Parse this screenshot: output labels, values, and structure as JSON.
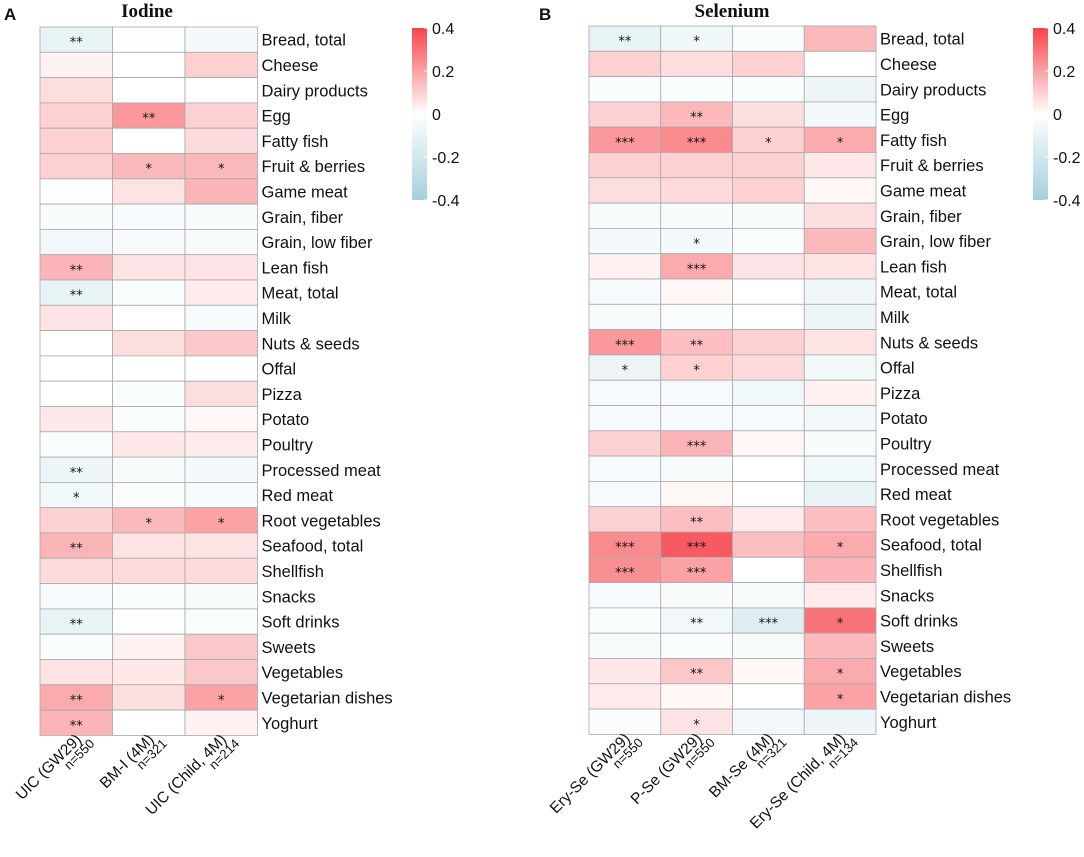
{
  "chart_data": [
    {
      "type": "heatmap",
      "panel": "A",
      "title": "Iodine",
      "rows": [
        "Bread, total",
        "Cheese",
        "Dairy products",
        "Egg",
        "Fatty fish",
        "Fruit & berries",
        "Game meat",
        "Grain, fiber",
        "Grain, low fiber",
        "Lean fish",
        "Meat, total",
        "Milk",
        "Nuts & seeds",
        "Offal",
        "Pizza",
        "Potato",
        "Poultry",
        "Processed meat",
        "Red meat",
        "Root vegetables",
        "Seafood, total",
        "Shellfish",
        "Snacks",
        "Soft drinks",
        "Sweets",
        "Vegetables",
        "Vegetarian dishes",
        "Yoghurt"
      ],
      "columns": [
        {
          "label": "UIC (GW29)",
          "n": "n=550"
        },
        {
          "label": "BM-I (4M)",
          "n": "n=321"
        },
        {
          "label": "UIC (Child, 4M)",
          "n": "n=214"
        }
      ],
      "values": [
        [
          -0.1,
          -0.01,
          -0.05
        ],
        [
          0.03,
          0.0,
          0.1
        ],
        [
          0.07,
          0.0,
          0.0
        ],
        [
          0.1,
          0.22,
          0.1
        ],
        [
          0.1,
          0.0,
          0.08
        ],
        [
          0.1,
          0.15,
          0.15
        ],
        [
          -0.01,
          0.06,
          0.16
        ],
        [
          -0.03,
          -0.04,
          -0.03
        ],
        [
          -0.06,
          -0.03,
          -0.03
        ],
        [
          0.16,
          0.06,
          0.06
        ],
        [
          -0.1,
          -0.02,
          0.04
        ],
        [
          0.06,
          0.0,
          -0.04
        ],
        [
          0.0,
          0.07,
          0.12
        ],
        [
          0.0,
          0.0,
          0.0
        ],
        [
          0.0,
          -0.02,
          0.07
        ],
        [
          0.05,
          -0.02,
          0.02
        ],
        [
          -0.02,
          0.05,
          0.04
        ],
        [
          -0.08,
          -0.03,
          -0.05
        ],
        [
          -0.06,
          -0.02,
          -0.03
        ],
        [
          0.1,
          0.15,
          0.2
        ],
        [
          0.16,
          0.06,
          0.06
        ],
        [
          0.08,
          0.08,
          0.08
        ],
        [
          -0.04,
          -0.02,
          -0.03
        ],
        [
          -0.1,
          -0.01,
          -0.02
        ],
        [
          -0.02,
          0.03,
          0.12
        ],
        [
          0.06,
          0.05,
          0.12
        ],
        [
          0.18,
          0.07,
          0.2
        ],
        [
          0.16,
          0.0,
          0.03
        ]
      ],
      "stars": [
        [
          "**",
          "",
          ""
        ],
        [
          "",
          "",
          ""
        ],
        [
          "",
          "",
          ""
        ],
        [
          "",
          "**",
          ""
        ],
        [
          "",
          "",
          ""
        ],
        [
          "",
          "*",
          "*"
        ],
        [
          "",
          "",
          ""
        ],
        [
          "",
          "",
          ""
        ],
        [
          "",
          "",
          ""
        ],
        [
          "**",
          "",
          ""
        ],
        [
          "**",
          "",
          ""
        ],
        [
          "",
          "",
          ""
        ],
        [
          "",
          "",
          ""
        ],
        [
          "",
          "",
          ""
        ],
        [
          "",
          "",
          ""
        ],
        [
          "",
          "",
          ""
        ],
        [
          "",
          "",
          ""
        ],
        [
          "**",
          "",
          ""
        ],
        [
          "*",
          "",
          ""
        ],
        [
          "",
          "*",
          "*"
        ],
        [
          "**",
          "",
          ""
        ],
        [
          "",
          "",
          ""
        ],
        [
          "",
          "",
          ""
        ],
        [
          "**",
          "",
          ""
        ],
        [
          "",
          "",
          ""
        ],
        [
          "",
          "",
          ""
        ],
        [
          "**",
          "",
          "*"
        ],
        [
          "**",
          "",
          ""
        ]
      ]
    },
    {
      "type": "heatmap",
      "panel": "B",
      "title": "Selenium",
      "rows": [
        "Bread, total",
        "Cheese",
        "Dairy products",
        "Egg",
        "Fatty fish",
        "Fruit & berries",
        "Game meat",
        "Grain, fiber",
        "Grain, low fiber",
        "Lean fish",
        "Meat, total",
        "Milk",
        "Nuts & seeds",
        "Offal",
        "Pizza",
        "Potato",
        "Poultry",
        "Processed meat",
        "Red meat",
        "Root vegetables",
        "Seafood, total",
        "Shellfish",
        "Snacks",
        "Soft drinks",
        "Sweets",
        "Vegetables",
        "Vegetarian dishes",
        "Yoghurt"
      ],
      "columns": [
        {
          "label": "Ery-Se (GW29)",
          "n": "n=550"
        },
        {
          "label": "P-Se (GW29)",
          "n": "n=550"
        },
        {
          "label": "BM-Se (4M)",
          "n": "n=321"
        },
        {
          "label": "Ery-Se (Child, 4M)",
          "n": "n=134"
        }
      ],
      "values": [
        [
          -0.1,
          -0.07,
          -0.02,
          0.15
        ],
        [
          0.1,
          0.07,
          0.1,
          0.0
        ],
        [
          -0.02,
          -0.02,
          -0.02,
          -0.08
        ],
        [
          0.1,
          0.15,
          0.07,
          -0.05
        ],
        [
          0.22,
          0.25,
          0.1,
          0.18
        ],
        [
          0.1,
          0.1,
          0.1,
          0.05
        ],
        [
          0.07,
          0.08,
          0.1,
          0.02
        ],
        [
          -0.03,
          -0.03,
          -0.03,
          0.07
        ],
        [
          -0.05,
          -0.05,
          -0.02,
          0.15
        ],
        [
          0.03,
          0.18,
          0.06,
          0.06
        ],
        [
          -0.04,
          0.02,
          0.0,
          -0.07
        ],
        [
          -0.03,
          -0.02,
          0.0,
          -0.08
        ],
        [
          0.22,
          0.14,
          0.1,
          0.06
        ],
        [
          -0.08,
          0.1,
          0.08,
          -0.06
        ],
        [
          -0.04,
          -0.04,
          -0.06,
          0.03
        ],
        [
          -0.04,
          -0.04,
          -0.04,
          -0.06
        ],
        [
          0.1,
          0.16,
          0.02,
          -0.03
        ],
        [
          -0.04,
          -0.03,
          0.0,
          -0.06
        ],
        [
          -0.04,
          0.02,
          0.0,
          -0.1
        ],
        [
          0.1,
          0.14,
          0.04,
          0.14
        ],
        [
          0.25,
          0.35,
          0.14,
          0.18
        ],
        [
          0.24,
          0.2,
          0.0,
          0.16
        ],
        [
          -0.04,
          -0.03,
          -0.03,
          0.04
        ],
        [
          -0.02,
          -0.06,
          -0.15,
          0.3
        ],
        [
          -0.03,
          -0.02,
          -0.03,
          0.15
        ],
        [
          0.05,
          0.12,
          0.02,
          0.18
        ],
        [
          0.04,
          0.02,
          0.0,
          0.2
        ],
        [
          -0.02,
          0.06,
          -0.06,
          -0.08
        ]
      ],
      "stars": [
        [
          "**",
          "*",
          "",
          ""
        ],
        [
          "",
          "",
          "",
          ""
        ],
        [
          "",
          "",
          "",
          ""
        ],
        [
          "",
          "**",
          "",
          ""
        ],
        [
          "***",
          "***",
          "*",
          "*"
        ],
        [
          "",
          "",
          "",
          ""
        ],
        [
          "",
          "",
          "",
          ""
        ],
        [
          "",
          "",
          "",
          ""
        ],
        [
          "",
          "*",
          "",
          ""
        ],
        [
          "",
          "***",
          "",
          ""
        ],
        [
          "",
          "",
          "",
          ""
        ],
        [
          "",
          "",
          "",
          ""
        ],
        [
          "***",
          "**",
          "",
          ""
        ],
        [
          "*",
          "*",
          "",
          ""
        ],
        [
          "",
          "",
          "",
          ""
        ],
        [
          "",
          "",
          "",
          ""
        ],
        [
          "",
          "***",
          "",
          ""
        ],
        [
          "",
          "",
          "",
          ""
        ],
        [
          "",
          "",
          "",
          ""
        ],
        [
          "",
          "**",
          "",
          ""
        ],
        [
          "***",
          "***",
          "",
          "*"
        ],
        [
          "***",
          "***",
          "",
          ""
        ],
        [
          "",
          "",
          "",
          ""
        ],
        [
          "",
          "**",
          "***",
          "*"
        ],
        [
          "",
          "",
          "",
          ""
        ],
        [
          "",
          "**",
          "",
          "*"
        ],
        [
          "",
          "",
          "",
          "*"
        ],
        [
          "",
          "*",
          "",
          ""
        ]
      ]
    }
  ],
  "colorbar": {
    "min": -0.4,
    "max": 0.4,
    "ticks": [
      "0.4",
      "0.2",
      "0",
      "-0.2",
      "-0.4"
    ],
    "positive_color": "#f6444a",
    "neutral_color": "#ffffff",
    "negative_color": "#a4cfdc"
  }
}
